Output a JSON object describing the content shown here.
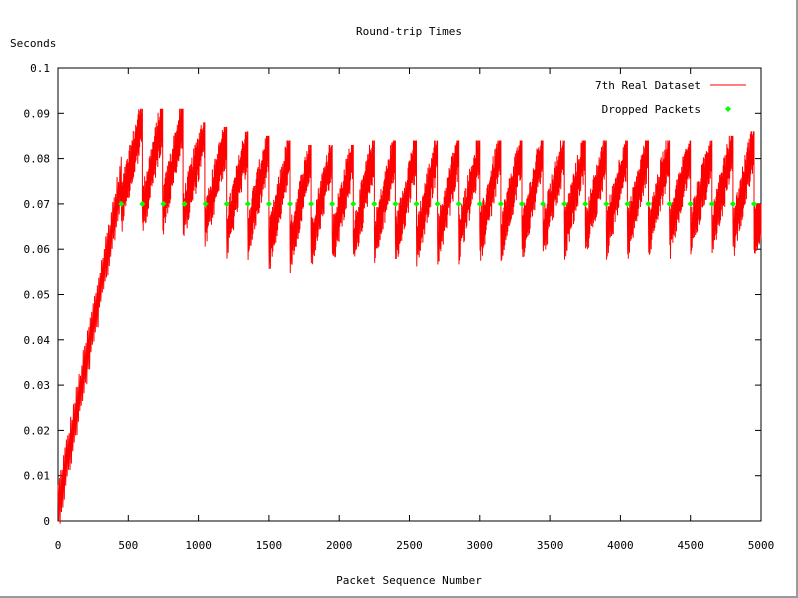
{
  "chart_data": {
    "type": "line",
    "title": "Round-trip Times",
    "ylabel": "Seconds",
    "xlabel": "Packet Sequence Number",
    "xlim": [
      0,
      5000
    ],
    "ylim": [
      0,
      0.1
    ],
    "xticks": [
      0,
      500,
      1000,
      1500,
      2000,
      2500,
      3000,
      3500,
      4000,
      4500,
      5000
    ],
    "yticks": [
      0,
      0.01,
      0.02,
      0.03,
      0.04,
      0.05,
      0.06,
      0.07,
      0.08,
      0.09,
      0.1
    ],
    "xtick_labels": [
      "0",
      "500",
      "1000",
      "1500",
      "2000",
      "2500",
      "3000",
      "3500",
      "4000",
      "4500",
      "5000"
    ],
    "ytick_labels": [
      "0",
      "0.01",
      "0.02",
      "0.03",
      "0.04",
      "0.05",
      "0.06",
      "0.07",
      "0.08",
      "0.09",
      "0.1"
    ],
    "grid": false,
    "legend_position": "top-right",
    "series": [
      {
        "name": "7th Real Dataset",
        "style": "line",
        "color": "#ff0000",
        "ramp": {
          "x": [
            0,
            450
          ],
          "y": [
            0.003,
            0.075
          ]
        },
        "cycles": [
          {
            "x_start": 450,
            "x_end": 600,
            "y_min": 0.063,
            "y_max": 0.091
          },
          {
            "x_start": 600,
            "x_end": 745,
            "y_min": 0.062,
            "y_max": 0.091
          },
          {
            "x_start": 745,
            "x_end": 890,
            "y_min": 0.062,
            "y_max": 0.091
          },
          {
            "x_start": 890,
            "x_end": 1045,
            "y_min": 0.061,
            "y_max": 0.088
          },
          {
            "x_start": 1045,
            "x_end": 1200,
            "y_min": 0.059,
            "y_max": 0.087
          },
          {
            "x_start": 1200,
            "x_end": 1350,
            "y_min": 0.057,
            "y_max": 0.086
          },
          {
            "x_start": 1350,
            "x_end": 1500,
            "y_min": 0.057,
            "y_max": 0.085
          },
          {
            "x_start": 1500,
            "x_end": 1650,
            "y_min": 0.054,
            "y_max": 0.084
          },
          {
            "x_start": 1650,
            "x_end": 1800,
            "y_min": 0.054,
            "y_max": 0.083
          },
          {
            "x_start": 1800,
            "x_end": 1950,
            "y_min": 0.055,
            "y_max": 0.083
          },
          {
            "x_start": 1950,
            "x_end": 2100,
            "y_min": 0.055,
            "y_max": 0.083
          },
          {
            "x_start": 2100,
            "x_end": 2250,
            "y_min": 0.055,
            "y_max": 0.084
          },
          {
            "x_start": 2250,
            "x_end": 2400,
            "y_min": 0.055,
            "y_max": 0.084
          },
          {
            "x_start": 2400,
            "x_end": 2550,
            "y_min": 0.055,
            "y_max": 0.084
          },
          {
            "x_start": 2550,
            "x_end": 2700,
            "y_min": 0.055,
            "y_max": 0.084
          },
          {
            "x_start": 2700,
            "x_end": 2850,
            "y_min": 0.055,
            "y_max": 0.084
          },
          {
            "x_start": 2850,
            "x_end": 3000,
            "y_min": 0.056,
            "y_max": 0.084
          },
          {
            "x_start": 3000,
            "x_end": 3150,
            "y_min": 0.056,
            "y_max": 0.084
          },
          {
            "x_start": 3150,
            "x_end": 3300,
            "y_min": 0.056,
            "y_max": 0.084
          },
          {
            "x_start": 3300,
            "x_end": 3450,
            "y_min": 0.056,
            "y_max": 0.084
          },
          {
            "x_start": 3450,
            "x_end": 3600,
            "y_min": 0.057,
            "y_max": 0.084
          },
          {
            "x_start": 3600,
            "x_end": 3750,
            "y_min": 0.057,
            "y_max": 0.084
          },
          {
            "x_start": 3750,
            "x_end": 3900,
            "y_min": 0.057,
            "y_max": 0.084
          },
          {
            "x_start": 3900,
            "x_end": 4050,
            "y_min": 0.057,
            "y_max": 0.084
          },
          {
            "x_start": 4050,
            "x_end": 4200,
            "y_min": 0.057,
            "y_max": 0.084
          },
          {
            "x_start": 4200,
            "x_end": 4350,
            "y_min": 0.057,
            "y_max": 0.084
          },
          {
            "x_start": 4350,
            "x_end": 4500,
            "y_min": 0.057,
            "y_max": 0.084
          },
          {
            "x_start": 4500,
            "x_end": 4650,
            "y_min": 0.057,
            "y_max": 0.084
          },
          {
            "x_start": 4650,
            "x_end": 4800,
            "y_min": 0.057,
            "y_max": 0.085
          },
          {
            "x_start": 4800,
            "x_end": 4950,
            "y_min": 0.057,
            "y_max": 0.086
          },
          {
            "x_start": 4950,
            "x_end": 5000,
            "y_min": 0.058,
            "y_max": 0.07
          }
        ]
      },
      {
        "name": "Dropped Packets",
        "style": "points",
        "color": "#00ff00",
        "x": [
          450,
          600,
          750,
          900,
          1050,
          1200,
          1350,
          1500,
          1650,
          1800,
          1950,
          2100,
          2250,
          2400,
          2550,
          2700,
          2850,
          3000,
          3150,
          3300,
          3450,
          3600,
          3750,
          3900,
          4050,
          4200,
          4350,
          4500,
          4650,
          4800,
          4950
        ],
        "y": [
          0.07,
          0.07,
          0.07,
          0.07,
          0.07,
          0.07,
          0.07,
          0.07,
          0.07,
          0.07,
          0.07,
          0.07,
          0.07,
          0.07,
          0.07,
          0.07,
          0.07,
          0.07,
          0.07,
          0.07,
          0.07,
          0.07,
          0.07,
          0.07,
          0.07,
          0.07,
          0.07,
          0.07,
          0.07,
          0.07,
          0.07
        ]
      }
    ]
  }
}
